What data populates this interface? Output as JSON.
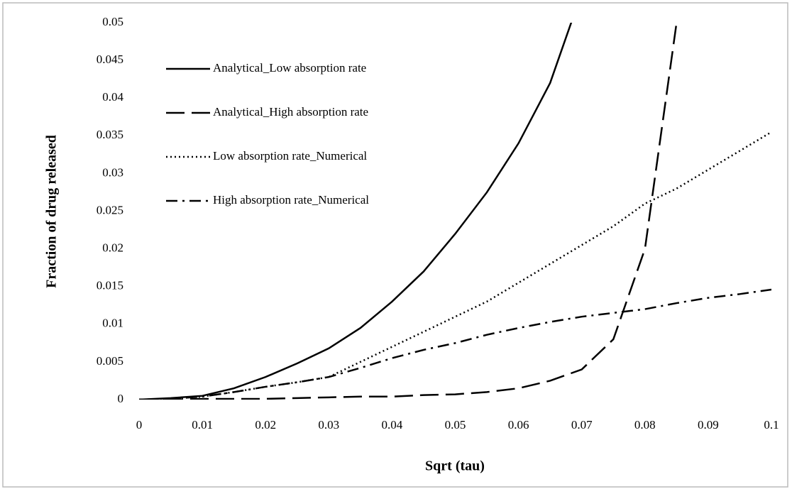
{
  "chart_data": {
    "type": "line",
    "x_label": "Sqrt (tau)",
    "y_label": "Fraction of drug released",
    "x": [
      0,
      0.005,
      0.01,
      0.015,
      0.02,
      0.025,
      0.03,
      0.035,
      0.04,
      0.045,
      0.05,
      0.055,
      0.06,
      0.065,
      0.07,
      0.075,
      0.08,
      0.085,
      0.09,
      0.095,
      0.1
    ],
    "series": [
      {
        "name": "Analytical_Low absorption rate",
        "color": "#000000",
        "dash": "solid",
        "values": [
          0,
          0.0002,
          0.0005,
          0.0015,
          0.003,
          0.0048,
          0.0068,
          0.0095,
          0.013,
          0.017,
          0.022,
          0.0275,
          0.034,
          0.042,
          0.054,
          null,
          null,
          null,
          null,
          null,
          null
        ]
      },
      {
        "name": "Analytical_High absorption rate",
        "color": "#000000",
        "dash": "dashed",
        "values": [
          0,
          0,
          0.0001,
          0.0001,
          0.0001,
          0.0002,
          0.0003,
          0.0004,
          0.0004,
          0.0006,
          0.0007,
          0.001,
          0.0015,
          0.0025,
          0.004,
          0.008,
          0.02,
          0.05,
          null,
          null,
          null
        ]
      },
      {
        "name": "Low absorption rate_Numerical",
        "color": "#000000",
        "dash": "dotted",
        "values": [
          0,
          0.0001,
          0.0004,
          0.001,
          0.0017,
          0.0023,
          0.003,
          0.005,
          0.007,
          0.009,
          0.011,
          0.013,
          0.0155,
          0.018,
          0.0205,
          0.023,
          0.026,
          0.028,
          0.0305,
          0.033,
          0.0355
        ]
      },
      {
        "name": "High absorption rate_Numerical",
        "color": "#000000",
        "dash": "dashdot",
        "values": [
          0,
          0.0001,
          0.0004,
          0.001,
          0.0017,
          0.0023,
          0.003,
          0.0042,
          0.0055,
          0.0066,
          0.0075,
          0.0086,
          0.0095,
          0.0103,
          0.011,
          0.0115,
          0.012,
          0.0128,
          0.0135,
          0.014,
          0.0146
        ]
      }
    ],
    "xlim": [
      0,
      0.1
    ],
    "xticks": [
      0,
      0.01,
      0.02,
      0.03,
      0.04,
      0.05,
      0.06,
      0.07,
      0.08,
      0.09,
      0.1
    ],
    "ylim": [
      0,
      0.05
    ],
    "yticks": [
      0,
      0.005,
      0.01,
      0.015,
      0.02,
      0.025,
      0.03,
      0.035,
      0.04,
      0.045,
      0.05
    ],
    "grid": false,
    "legend": "top-left"
  }
}
